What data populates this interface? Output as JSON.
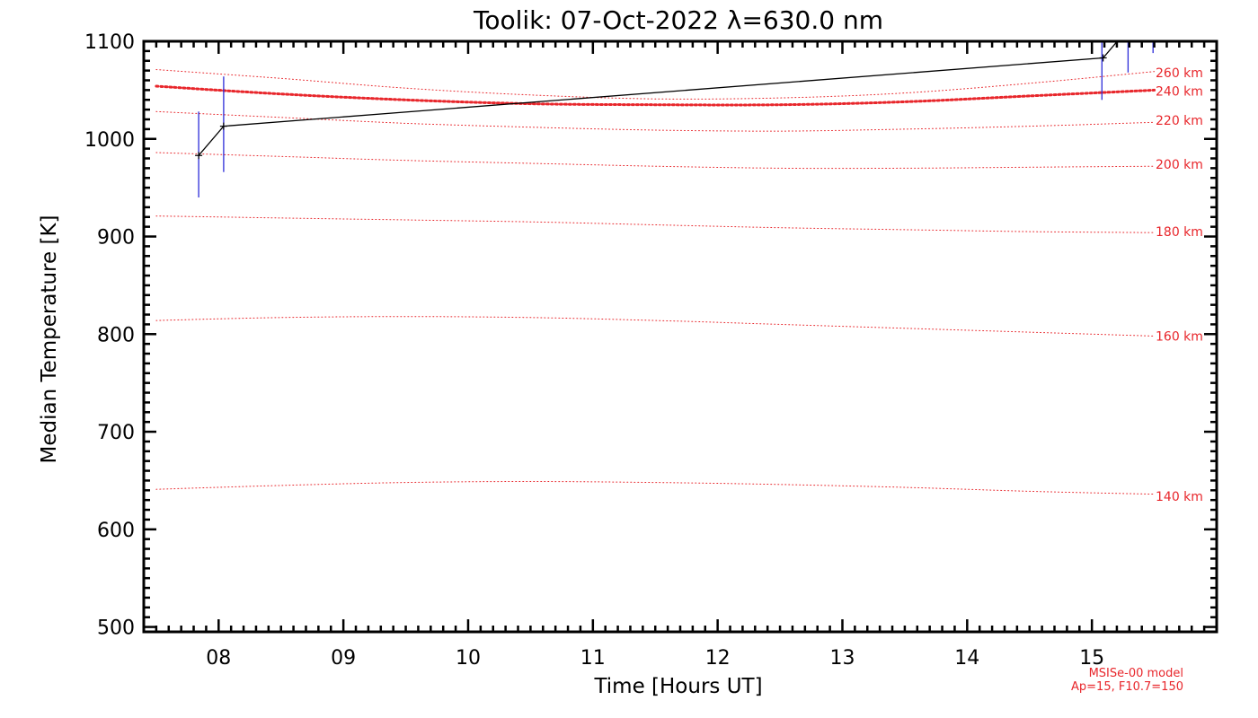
{
  "chart_data": {
    "type": "line",
    "title": "Toolik: 07-Oct-2022 λ=630.0 nm",
    "xlabel": "Time [Hours UT]",
    "ylabel": "Median Temperature [K]",
    "xlim": [
      7.4,
      16.0
    ],
    "ylim": [
      495,
      1100
    ],
    "x_ticks": [
      8,
      9,
      10,
      11,
      12,
      13,
      14,
      15
    ],
    "x_tick_labels": [
      "08",
      "09",
      "10",
      "11",
      "12",
      "13",
      "14",
      "15"
    ],
    "y_ticks": [
      500,
      600,
      700,
      800,
      900,
      1000,
      1100
    ],
    "y_tick_labels": [
      "500",
      "600",
      "700",
      "800",
      "900",
      "1000",
      "1100"
    ],
    "grid": false,
    "series": [
      {
        "type": "line",
        "color": "#000000",
        "x": [
          7.84,
          8.04,
          15.09,
          15.27
        ],
        "y": [
          983,
          1013,
          1083,
          1110
        ]
      }
    ],
    "error_bars": {
      "color": "#2b2bd8",
      "points": [
        {
          "x": 7.84,
          "low": 940,
          "high": 1028
        },
        {
          "x": 8.04,
          "low": 966,
          "high": 1064
        },
        {
          "x": 15.08,
          "low": 1040,
          "high": 1110
        },
        {
          "x": 15.29,
          "low": 1068,
          "high": 1110
        },
        {
          "x": 15.49,
          "low": 1088,
          "high": 1110
        }
      ]
    },
    "model_curves": {
      "color": "#e8262b",
      "x": [
        7.5,
        8.5,
        9.5,
        10.5,
        11.5,
        12.5,
        13.5,
        14.5,
        15.5
      ],
      "curves": [
        {
          "label": "260 km",
          "y": [
            1071,
            1062,
            1052,
            1045,
            1041,
            1042,
            1047,
            1057,
            1069
          ]
        },
        {
          "label": "240 km",
          "y": [
            1054,
            1046,
            1040,
            1036,
            1035,
            1035,
            1038,
            1044,
            1050
          ],
          "emphasized": true
        },
        {
          "label": "220 km",
          "y": [
            1028,
            1022,
            1016,
            1012,
            1009,
            1008,
            1010,
            1013,
            1017
          ]
        },
        {
          "label": "200 km",
          "y": [
            986,
            982,
            978,
            975,
            972,
            970,
            970,
            971,
            972
          ]
        },
        {
          "label": "180 km",
          "y": [
            921,
            919,
            917,
            915,
            912,
            909,
            907,
            905,
            904
          ]
        },
        {
          "label": "160 km",
          "y": [
            814,
            817,
            818,
            817,
            814,
            810,
            806,
            802,
            798
          ]
        },
        {
          "label": "140 km",
          "y": [
            641,
            645,
            648,
            649,
            648,
            646,
            643,
            639,
            636
          ]
        }
      ]
    },
    "model_label_y": {
      "260 km": 1068,
      "240 km": 1049,
      "220 km": 1019,
      "200 km": 974,
      "180 km": 905,
      "160 km": 798,
      "140 km": 634
    },
    "credits": [
      "MSISe-00 model",
      "Ap=15, F10.7=150"
    ]
  }
}
